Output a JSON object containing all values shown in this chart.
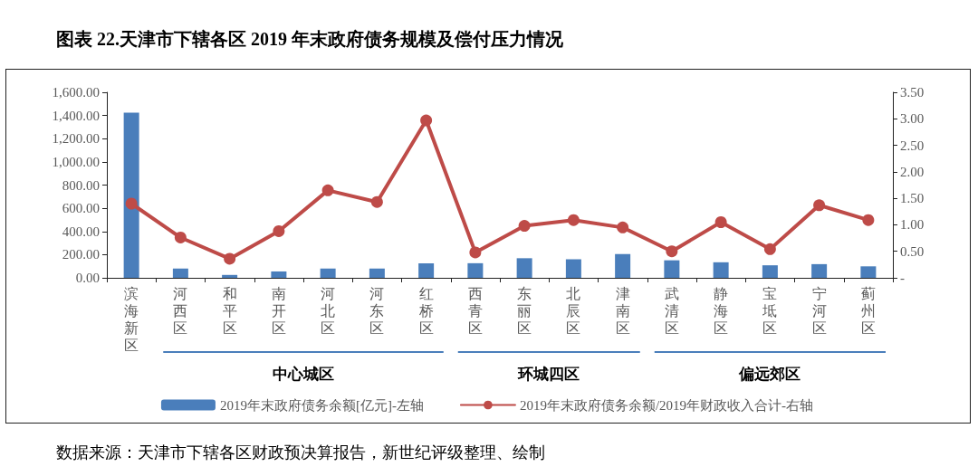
{
  "chart_data": {
    "type": "bar",
    "title": "图表 22.天津市下辖各区 2019 年末政府债务规模及偿付压力情况",
    "categories": [
      "滨海新区",
      "河西区",
      "和平区",
      "南开区",
      "河北区",
      "河东区",
      "红桥区",
      "西青区",
      "东丽区",
      "北辰区",
      "津南区",
      "武清区",
      "静海区",
      "宝坻区",
      "宁河区",
      "蓟州区"
    ],
    "series": [
      {
        "name": "2019年末政府债务余额[亿元]-左轴",
        "color": "#4a7ebb",
        "values": [
          1425,
          80,
          25,
          55,
          80,
          80,
          125,
          126,
          169,
          160,
          205,
          151,
          134,
          108,
          118,
          99
        ]
      },
      {
        "name": "2019年末政府债务余额/2019年财政收入合计-右轴",
        "type": "line",
        "axis": "y2",
        "color": "#be4b48",
        "marker": "circle",
        "values": [
          1.4,
          0.76,
          0.36,
          0.88,
          1.65,
          1.43,
          2.97,
          0.48,
          0.98,
          1.09,
          0.95,
          0.5,
          1.05,
          0.54,
          1.37,
          1.09
        ]
      }
    ],
    "ylim": [
      0,
      1600
    ],
    "yticks": [
      {
        "value": 0,
        "label": "0.00"
      },
      {
        "value": 200,
        "label": "200.00"
      },
      {
        "value": 400,
        "label": "400.00"
      },
      {
        "value": 600,
        "label": "600.00"
      },
      {
        "value": 800,
        "label": "800.00"
      },
      {
        "value": 1000,
        "label": "1,000.00"
      },
      {
        "value": 1200,
        "label": "1,200.00"
      },
      {
        "value": 1400,
        "label": "1,400.00"
      },
      {
        "value": 1600,
        "label": "1,600.00"
      }
    ],
    "y2lim": [
      0,
      3.5
    ],
    "y2ticks": [
      {
        "value": 0,
        "label": "-"
      },
      {
        "value": 0.5,
        "label": "0.50"
      },
      {
        "value": 1,
        "label": "1.00"
      },
      {
        "value": 1.5,
        "label": "1.50"
      },
      {
        "value": 2,
        "label": "2.00"
      },
      {
        "value": 2.5,
        "label": "2.50"
      },
      {
        "value": 3,
        "label": "3.00"
      },
      {
        "value": 3.5,
        "label": "3.50"
      }
    ],
    "grid": false,
    "legend": "bottom",
    "annotations": [
      "中心城区",
      "环城四区",
      "偏远郊区",
      "数据来源：天津市下辖各区财政预决算报告，新世纪评级整理、绘制"
    ]
  }
}
